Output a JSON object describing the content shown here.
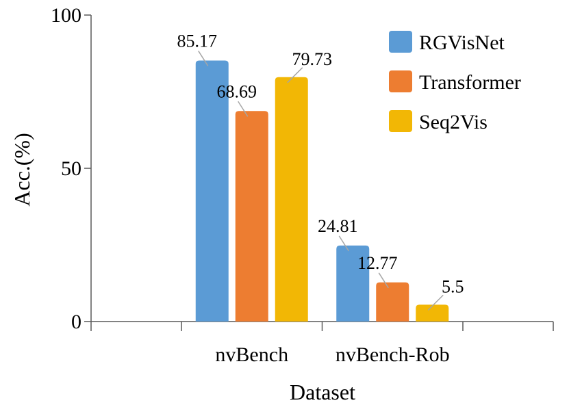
{
  "chart_data": {
    "type": "bar",
    "categories": [
      "nvBench",
      "nvBench-Rob"
    ],
    "series": [
      {
        "name": "RGVisNet",
        "values": [
          85.17,
          24.81
        ],
        "color": "#5b9bd5"
      },
      {
        "name": "Transformer",
        "values": [
          68.69,
          12.77
        ],
        "color": "#ed7d31"
      },
      {
        "name": "Seq2Vis",
        "values": [
          79.73,
          5.5
        ],
        "color": "#f2b705"
      }
    ],
    "data_labels": [
      [
        "85.17",
        "24.81"
      ],
      [
        "68.69",
        "12.77"
      ],
      [
        "79.73",
        "5.5"
      ]
    ],
    "xlabel": "Dataset",
    "ylabel": "Acc.(%)",
    "ylim": [
      0,
      100
    ],
    "yticks": [
      0,
      50,
      100
    ],
    "grid": false,
    "legend_position": "top-right"
  }
}
